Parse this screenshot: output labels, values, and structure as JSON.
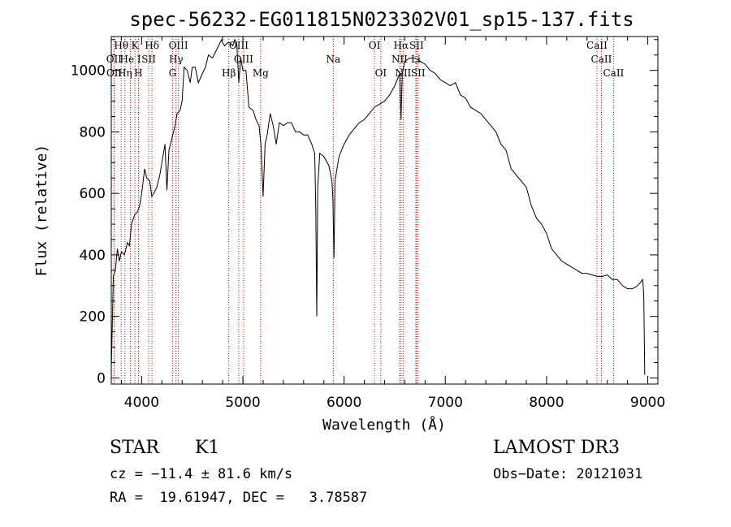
{
  "chart_data": {
    "type": "line",
    "title": "spec-56232-EG011815N023302V01_sp15-137.fits",
    "xlabel": "Wavelength (Å)",
    "ylabel": "Flux (relative)",
    "xlim": [
      3700,
      9100
    ],
    "ylim": [
      -20,
      1110
    ],
    "xticks": [
      4000,
      5000,
      6000,
      7000,
      8000,
      9000
    ],
    "yticks": [
      0,
      200,
      400,
      600,
      800,
      1000
    ],
    "grid": false,
    "series": [
      {
        "color": "#000000",
        "points": [
          [
            3700,
            30
          ],
          [
            3710,
            160
          ],
          [
            3720,
            330
          ],
          [
            3740,
            350
          ],
          [
            3760,
            420
          ],
          [
            3780,
            380
          ],
          [
            3800,
            410
          ],
          [
            3830,
            400
          ],
          [
            3860,
            440
          ],
          [
            3880,
            430
          ],
          [
            3900,
            500
          ],
          [
            3930,
            530
          ],
          [
            3960,
            540
          ],
          [
            3980,
            560
          ],
          [
            4000,
            600
          ],
          [
            4030,
            680
          ],
          [
            4050,
            650
          ],
          [
            4080,
            640
          ],
          [
            4100,
            590
          ],
          [
            4120,
            600
          ],
          [
            4150,
            620
          ],
          [
            4180,
            660
          ],
          [
            4200,
            700
          ],
          [
            4230,
            760
          ],
          [
            4250,
            610
          ],
          [
            4270,
            740
          ],
          [
            4300,
            780
          ],
          [
            4330,
            820
          ],
          [
            4350,
            860
          ],
          [
            4380,
            870
          ],
          [
            4400,
            900
          ],
          [
            4420,
            1010
          ],
          [
            4450,
            1000
          ],
          [
            4480,
            960
          ],
          [
            4500,
            1010
          ],
          [
            4530,
            1010
          ],
          [
            4560,
            960
          ],
          [
            4600,
            990
          ],
          [
            4630,
            1010
          ],
          [
            4660,
            1050
          ],
          [
            4700,
            1040
          ],
          [
            4730,
            1060
          ],
          [
            4760,
            1080
          ],
          [
            4790,
            1100
          ],
          [
            4800,
            1090
          ],
          [
            4820,
            1080
          ],
          [
            4850,
            1090
          ],
          [
            4870,
            1090
          ],
          [
            4900,
            1080
          ],
          [
            4920,
            1100
          ],
          [
            4940,
            1090
          ],
          [
            4960,
            960
          ],
          [
            4980,
            1040
          ],
          [
            5000,
            1000
          ],
          [
            5030,
            1000
          ],
          [
            5060,
            880
          ],
          [
            5100,
            870
          ],
          [
            5130,
            840
          ],
          [
            5160,
            820
          ],
          [
            5180,
            750
          ],
          [
            5200,
            590
          ],
          [
            5220,
            760
          ],
          [
            5240,
            790
          ],
          [
            5270,
            860
          ],
          [
            5300,
            820
          ],
          [
            5330,
            760
          ],
          [
            5360,
            830
          ],
          [
            5400,
            820
          ],
          [
            5440,
            830
          ],
          [
            5480,
            830
          ],
          [
            5520,
            800
          ],
          [
            5560,
            800
          ],
          [
            5600,
            790
          ],
          [
            5640,
            790
          ],
          [
            5680,
            760
          ],
          [
            5710,
            730
          ],
          [
            5720,
            550
          ],
          [
            5730,
            200
          ],
          [
            5740,
            620
          ],
          [
            5760,
            730
          ],
          [
            5800,
            720
          ],
          [
            5850,
            690
          ],
          [
            5880,
            640
          ],
          [
            5890,
            580
          ],
          [
            5900,
            390
          ],
          [
            5905,
            500
          ],
          [
            5910,
            640
          ],
          [
            5950,
            720
          ],
          [
            6000,
            760
          ],
          [
            6050,
            790
          ],
          [
            6100,
            810
          ],
          [
            6150,
            830
          ],
          [
            6200,
            840
          ],
          [
            6250,
            860
          ],
          [
            6300,
            880
          ],
          [
            6350,
            890
          ],
          [
            6400,
            900
          ],
          [
            6450,
            920
          ],
          [
            6500,
            950
          ],
          [
            6550,
            990
          ],
          [
            6562,
            840
          ],
          [
            6575,
            990
          ],
          [
            6600,
            1030
          ],
          [
            6650,
            1040
          ],
          [
            6700,
            1040
          ],
          [
            6750,
            1030
          ],
          [
            6800,
            1020
          ],
          [
            6850,
            1000
          ],
          [
            6900,
            990
          ],
          [
            6950,
            970
          ],
          [
            7000,
            960
          ],
          [
            7050,
            950
          ],
          [
            7100,
            960
          ],
          [
            7150,
            920
          ],
          [
            7200,
            910
          ],
          [
            7250,
            880
          ],
          [
            7300,
            870
          ],
          [
            7350,
            860
          ],
          [
            7400,
            840
          ],
          [
            7450,
            820
          ],
          [
            7500,
            800
          ],
          [
            7550,
            760
          ],
          [
            7600,
            740
          ],
          [
            7650,
            680
          ],
          [
            7700,
            660
          ],
          [
            7750,
            640
          ],
          [
            7800,
            620
          ],
          [
            7850,
            560
          ],
          [
            7900,
            520
          ],
          [
            7950,
            500
          ],
          [
            8000,
            470
          ],
          [
            8050,
            420
          ],
          [
            8100,
            400
          ],
          [
            8150,
            380
          ],
          [
            8200,
            370
          ],
          [
            8250,
            360
          ],
          [
            8300,
            350
          ],
          [
            8350,
            340
          ],
          [
            8400,
            340
          ],
          [
            8450,
            335
          ],
          [
            8500,
            330
          ],
          [
            8550,
            330
          ],
          [
            8600,
            335
          ],
          [
            8650,
            320
          ],
          [
            8700,
            320
          ],
          [
            8750,
            300
          ],
          [
            8800,
            290
          ],
          [
            8850,
            290
          ],
          [
            8900,
            300
          ],
          [
            8950,
            320
          ],
          [
            8960,
            270
          ],
          [
            8970,
            10
          ]
        ]
      }
    ],
    "spectral_lines": [
      {
        "label": "Hθ",
        "x": 3798,
        "row": 1
      },
      {
        "label": "OII",
        "x": 3727,
        "row": 2
      },
      {
        "label": "OII",
        "x": 3729,
        "row": 3
      },
      {
        "label": "Hη",
        "x": 3835,
        "row": 3
      },
      {
        "label": "He I",
        "x": 3889,
        "row": 2
      },
      {
        "label": "K",
        "x": 3934,
        "row": 1
      },
      {
        "label": "H",
        "x": 3968,
        "row": 3
      },
      {
        "label": "SII",
        "x": 4070,
        "row": 2
      },
      {
        "label": "Hδ",
        "x": 4102,
        "row": 1
      },
      {
        "label": "OIII",
        "x": 4363,
        "row": 1
      },
      {
        "label": "Hγ",
        "x": 4340,
        "row": 2
      },
      {
        "label": "G",
        "x": 4305,
        "row": 3
      },
      {
        "label": "OIII",
        "x": 4959,
        "row": 1
      },
      {
        "label": "OIII",
        "x": 5007,
        "row": 2
      },
      {
        "label": "Hβ",
        "x": 4861,
        "row": 3
      },
      {
        "label": "Mg",
        "x": 5175,
        "row": 3
      },
      {
        "label": "Na",
        "x": 5893,
        "row": 2
      },
      {
        "label": "OI",
        "x": 6300,
        "row": 1
      },
      {
        "label": "OI",
        "x": 6363,
        "row": 3
      },
      {
        "label": "Hα",
        "x": 6563,
        "row": 1
      },
      {
        "label": "NII",
        "x": 6548,
        "row": 2
      },
      {
        "label": "NII",
        "x": 6583,
        "row": 3
      },
      {
        "label": "SII",
        "x": 6716,
        "row": 1
      },
      {
        "label": "Li",
        "x": 6708,
        "row": 2
      },
      {
        "label": "SII",
        "x": 6731,
        "row": 3
      },
      {
        "label": "CaII",
        "x": 8498,
        "row": 1
      },
      {
        "label": "CaII",
        "x": 8542,
        "row": 2
      },
      {
        "label": "CaII",
        "x": 8662,
        "row": 3
      }
    ]
  },
  "info": {
    "class_label": "STAR",
    "subclass": "K1",
    "survey": "LAMOST DR3",
    "cz": "cz = −11.4 ± 81.6 km/s",
    "obs_date": "Obs−Date: 20121031",
    "radec": "RA =  19.61947, DEC =   3.78587"
  },
  "colors": {
    "line_marker": "#cc0000",
    "spectrum": "#000000"
  }
}
